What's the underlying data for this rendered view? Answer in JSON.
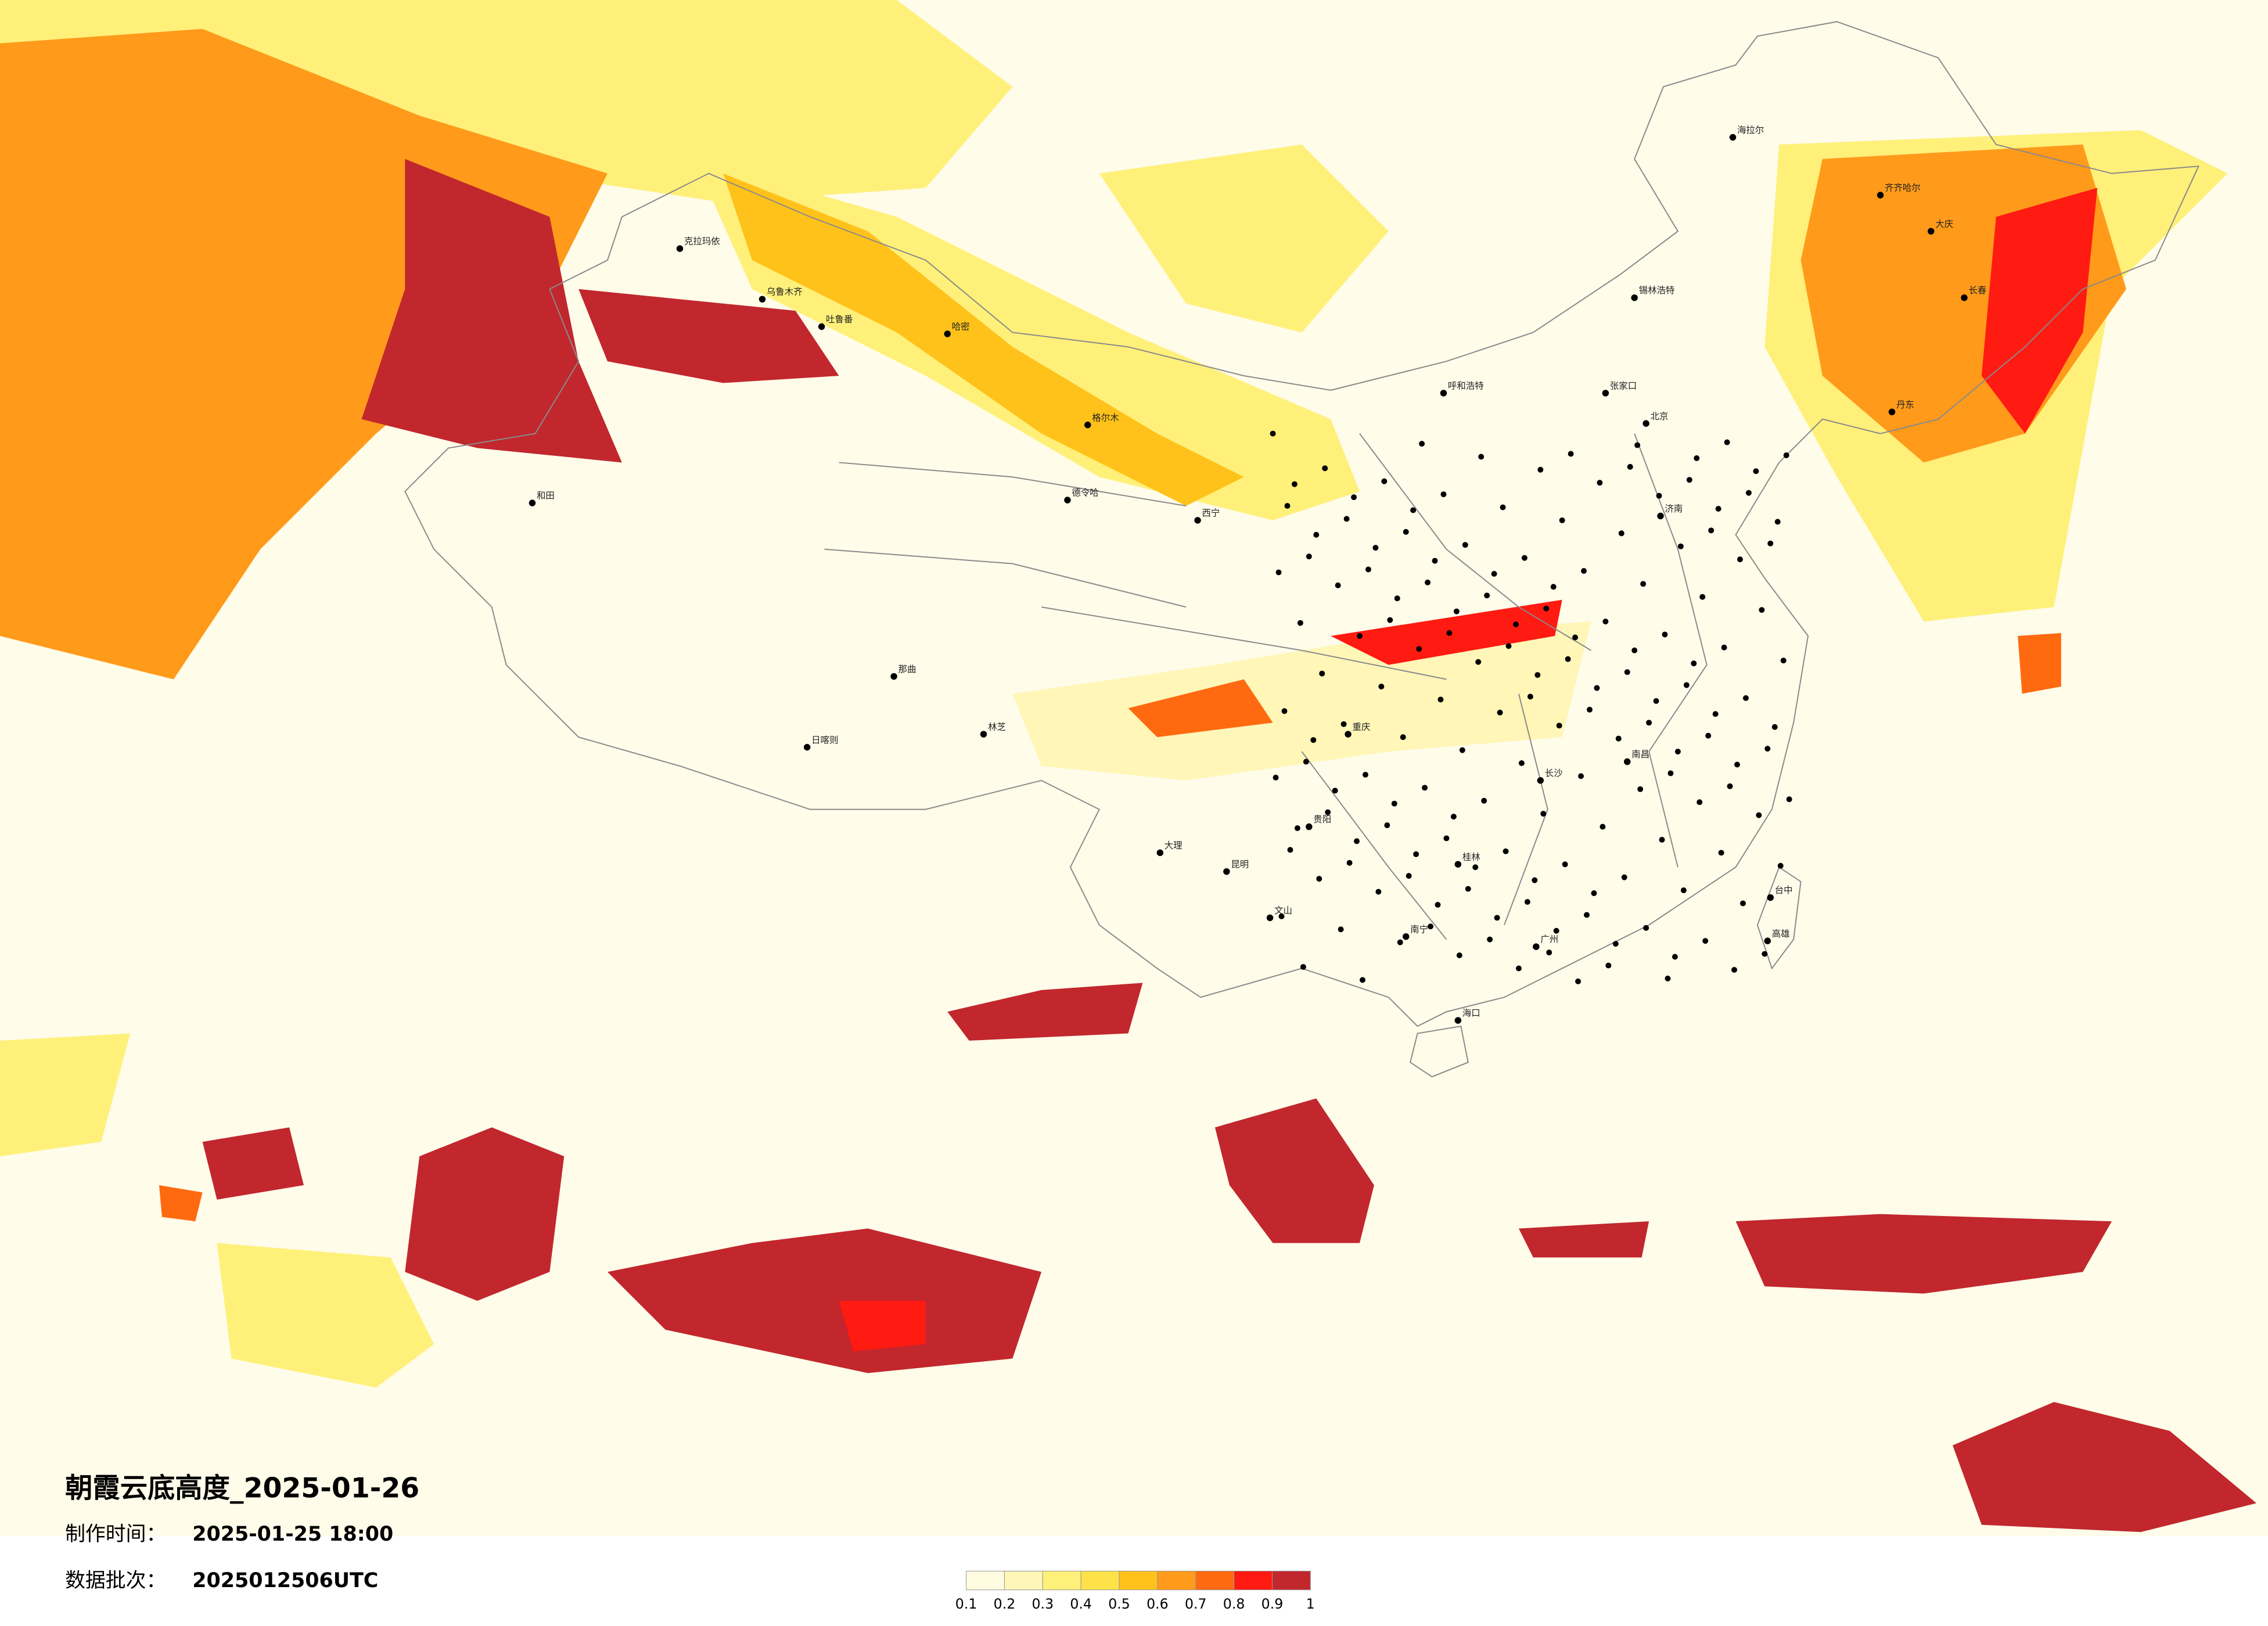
{
  "header": {
    "title": "朝霞云底高度_2025-01-26",
    "made_label": "制作时间：",
    "made_time": "2025-01-25 18:00",
    "batch_label": "数据批次：",
    "batch": "2025012506UTC"
  },
  "legend": {
    "colors": [
      "#fffbe0",
      "#fff6b8",
      "#fff07a",
      "#ffe14a",
      "#ffc21a",
      "#ff9a1a",
      "#ff6a10",
      "#ff1a12",
      "#c1272d"
    ],
    "ticks": [
      0.1,
      0.2,
      0.3,
      0.4,
      0.5,
      0.6,
      0.7,
      0.8,
      0.9,
      1
    ]
  },
  "cities": [
    "克拉玛依",
    "乌鲁木齐",
    "吐鲁番",
    "哈密",
    "和田",
    "日喀则",
    "林芝",
    "格尔木",
    "德令哈",
    "西宁",
    "呼和浩特",
    "海拉尔",
    "齐齐哈尔",
    "大庆",
    "长春",
    "北京",
    "张家口",
    "济南",
    "南昌",
    "长沙",
    "广州",
    "桂林",
    "昆明",
    "重庆",
    "贵阳",
    "南宁",
    "海口",
    "台中",
    "高雄",
    "文山",
    "大理",
    "丹东",
    "锡林浩特",
    "那曲"
  ]
}
